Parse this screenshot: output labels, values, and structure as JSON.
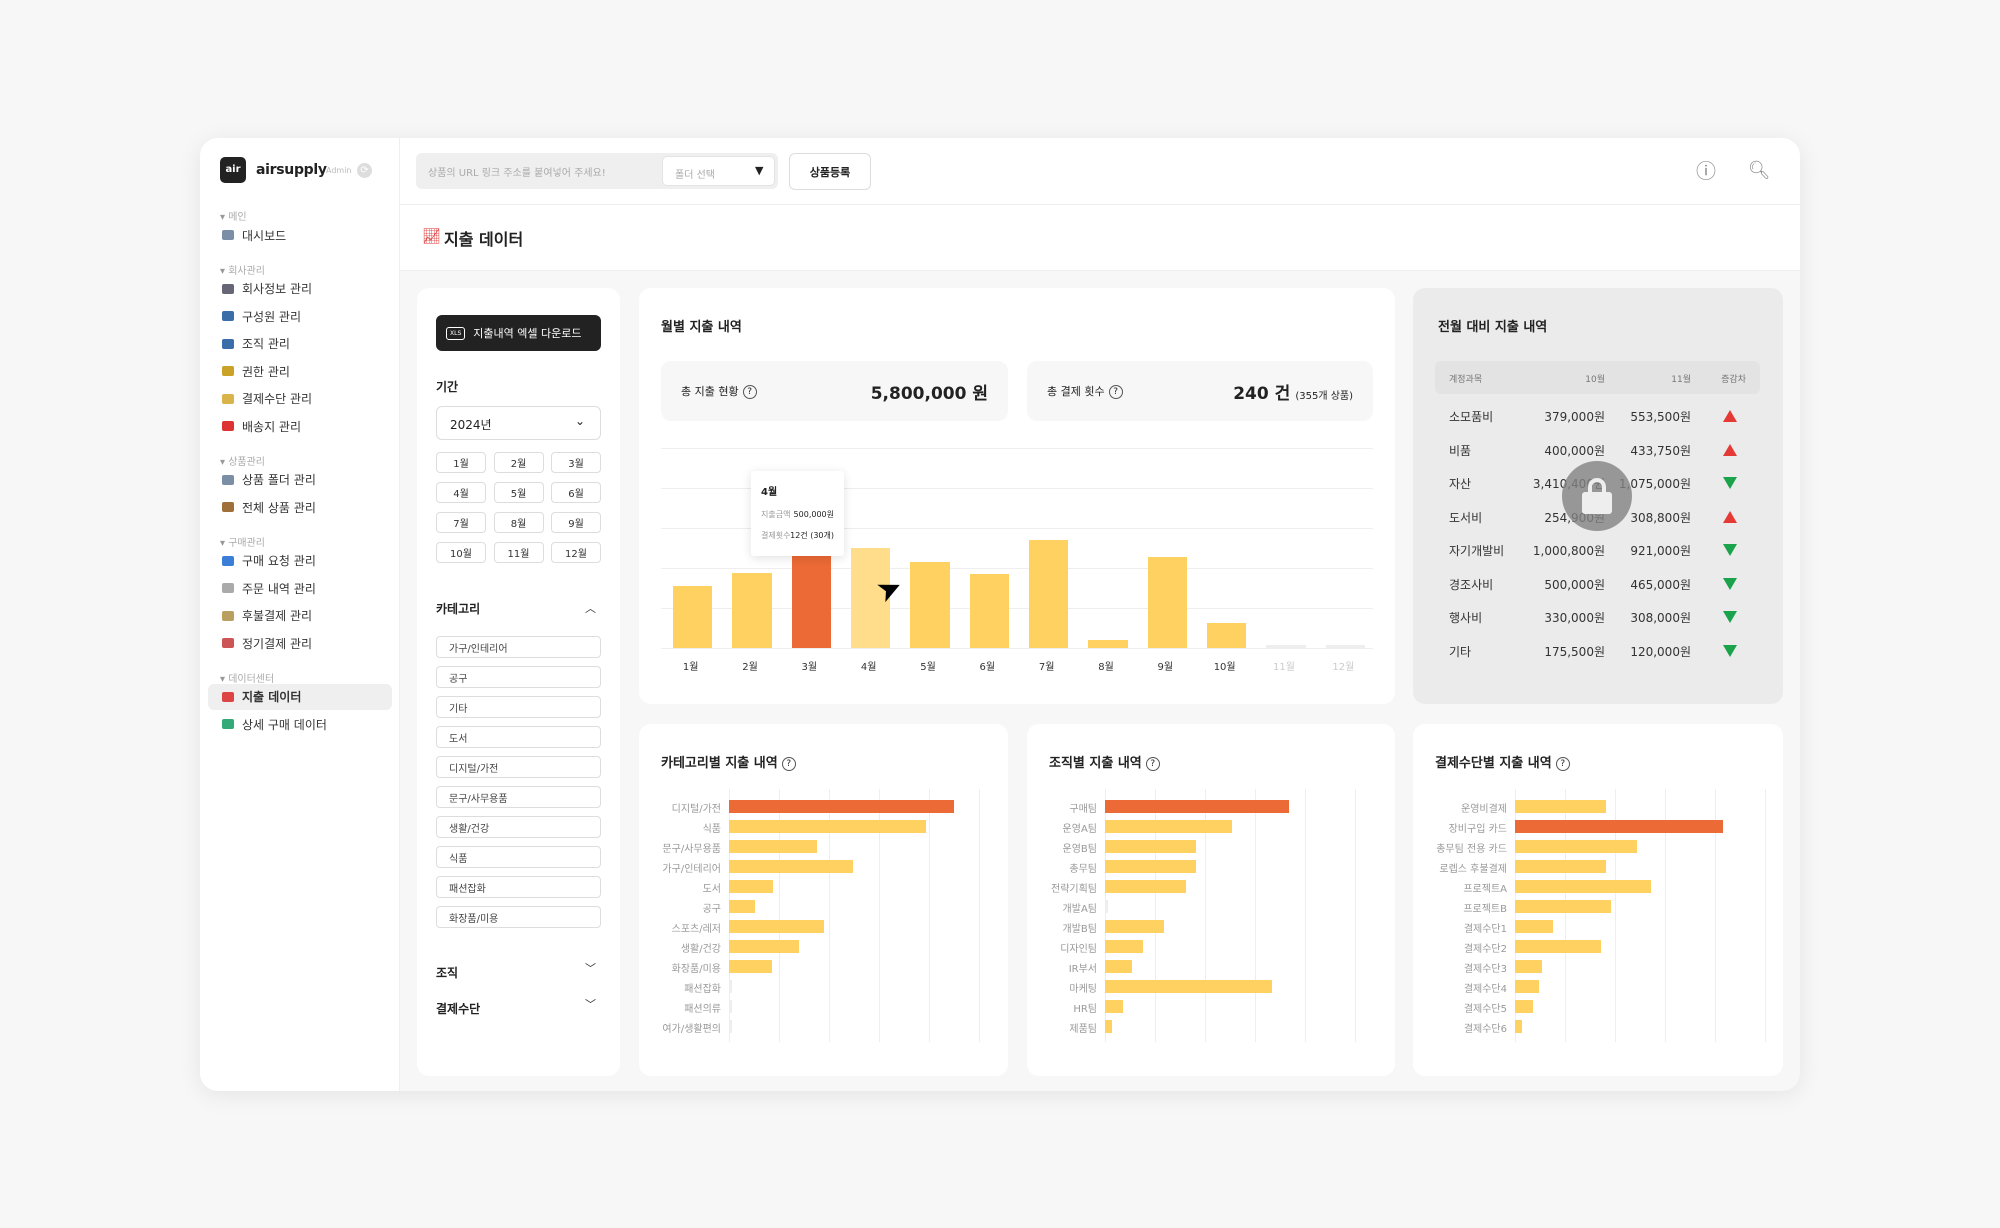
{
  "brand": {
    "logo": "air",
    "name": "airsupply",
    "badge": "Admin"
  },
  "sidebar": [
    {
      "section": "메인",
      "items": [
        {
          "label": "대시보드",
          "icon": "folder-icon",
          "color": "#7a8fa6"
        }
      ]
    },
    {
      "section": "회사관리",
      "items": [
        {
          "label": "회사정보 관리",
          "icon": "building-icon",
          "color": "#667"
        },
        {
          "label": "구성원 관리",
          "icon": "user-icon",
          "color": "#3b6ea8"
        },
        {
          "label": "조직 관리",
          "icon": "users-icon",
          "color": "#3b6ea8"
        },
        {
          "label": "권한 관리",
          "icon": "lock-icon",
          "color": "#c9a227"
        },
        {
          "label": "결제수단 관리",
          "icon": "credit-card-icon",
          "color": "#d8b44a"
        },
        {
          "label": "배송지 관리",
          "icon": "pin-icon",
          "color": "#d33"
        }
      ]
    },
    {
      "section": "상품관리",
      "items": [
        {
          "label": "상품 폴더 관리",
          "icon": "folder-icon",
          "color": "#7a8fa6"
        },
        {
          "label": "전체 상품 관리",
          "icon": "package-icon",
          "color": "#a0703a"
        }
      ]
    },
    {
      "section": "구매관리",
      "items": [
        {
          "label": "구매 요청 관리",
          "icon": "inbox-icon",
          "color": "#3b7ed8"
        },
        {
          "label": "주문 내역 관리",
          "icon": "document-icon",
          "color": "#aaa"
        },
        {
          "label": "후불결제 관리",
          "icon": "money-icon",
          "color": "#b9a060"
        },
        {
          "label": "정기결제 관리",
          "icon": "calendar-icon",
          "color": "#c55"
        }
      ]
    },
    {
      "section": "데이터센터",
      "items": [
        {
          "label": "지출 데이터",
          "icon": "chart-up-icon",
          "color": "#d44",
          "active": true
        },
        {
          "label": "상세 구매 데이터",
          "icon": "bar-chart-icon",
          "color": "#3a7"
        }
      ]
    }
  ],
  "header": {
    "url_placeholder": "상품의 URL 링크 주소를 붙여넣어 주세요!",
    "folder_placeholder": "폴더 선택",
    "register": "상품등록"
  },
  "page": {
    "title": "지출 데이터"
  },
  "filter": {
    "download": "지출내역 엑셀 다운로드",
    "period_label": "기간",
    "year": "2024년",
    "months": [
      "1월",
      "2월",
      "3월",
      "4월",
      "5월",
      "6월",
      "7월",
      "8월",
      "9월",
      "10월",
      "11월",
      "12월"
    ],
    "category_label": "카테고리",
    "categories": [
      "가구/인테리어",
      "공구",
      "기타",
      "도서",
      "디지털/가전",
      "문구/사무용품",
      "생활/건강",
      "식품",
      "패션잡화",
      "화장품/미용"
    ],
    "org_label": "조직",
    "payment_label": "결제수단"
  },
  "monthly": {
    "title": "월별 지출 내역",
    "total_label": "총 지출 현황",
    "total_value": "5,800,000 원",
    "count_label": "총 결제 횟수",
    "count_value": "240 건",
    "count_sub": "(355개 상품)",
    "tooltip": {
      "month": "4월",
      "amount_label": "지출금액",
      "amount": "500,000원",
      "count_label": "결제횟수",
      "count": "12건 (30개)"
    }
  },
  "compare": {
    "title": "전월 대비 지출 내역",
    "headers": [
      "계정과목",
      "10월",
      "11월",
      "증감차"
    ],
    "rows": [
      [
        "소모품비",
        "379,000원",
        "553,500원",
        "up"
      ],
      [
        "비품",
        "400,000원",
        "433,750원",
        "up"
      ],
      [
        "자산",
        "3,410,400원",
        "1,075,000원",
        "down"
      ],
      [
        "도서비",
        "254,900원",
        "308,800원",
        "up"
      ],
      [
        "자기개발비",
        "1,000,800원",
        "921,000원",
        "down"
      ],
      [
        "경조사비",
        "500,000원",
        "465,000원",
        "down"
      ],
      [
        "행사비",
        "330,000원",
        "308,000원",
        "down"
      ],
      [
        "기타",
        "175,500원",
        "120,000원",
        "down"
      ]
    ]
  },
  "colors": {
    "accent": "#ec6a35",
    "bar": "#ffd160",
    "bar_hover": "#ffdd8a",
    "empty": "#eeeeee",
    "up": "#e53935",
    "down": "#1aa34a"
  },
  "chart_data": [
    {
      "type": "bar",
      "title": "월별 지출 내역",
      "categories": [
        "1월",
        "2월",
        "3월",
        "4월",
        "5월",
        "6월",
        "7월",
        "8월",
        "9월",
        "10월",
        "11월",
        "12월"
      ],
      "values": [
        310000,
        375000,
        715000,
        500000,
        430000,
        370000,
        540000,
        40000,
        455000,
        125000,
        0,
        0
      ],
      "ylim": [
        0,
        1000000
      ],
      "highlight": "3월",
      "hover": "4월"
    },
    {
      "type": "bar",
      "orientation": "horizontal",
      "title": "카테고리별 지출 내역",
      "categories": [
        "디지털/가전",
        "식품",
        "문구/사무용품",
        "가구/인테리어",
        "도서",
        "공구",
        "스포츠/레저",
        "생활/건강",
        "화장품/미용",
        "패션잡화",
        "패션의류",
        "여가/생활편의"
      ],
      "values": [
        4.49,
        3.93,
        1.75,
        2.47,
        0.88,
        0.51,
        1.89,
        1.39,
        0.85,
        0,
        0,
        0
      ],
      "xlim": [
        0,
        5
      ]
    },
    {
      "type": "bar",
      "orientation": "horizontal",
      "title": "조직별 지출 내역",
      "categories": [
        "구매팀",
        "운영A팀",
        "운영B팀",
        "총무팀",
        "전략기획팀",
        "개발A팀",
        "개발B팀",
        "디자인팀",
        "IR부서",
        "마케팅",
        "HR팀",
        "제품팀"
      ],
      "values": [
        3.67,
        2.54,
        1.81,
        1.81,
        1.61,
        0,
        1.17,
        0.76,
        0.54,
        3.34,
        0.35,
        0.14
      ],
      "xlim": [
        0,
        5
      ]
    },
    {
      "type": "bar",
      "orientation": "horizontal",
      "title": "결제수단별 지출 내역",
      "categories": [
        "운영비결제",
        "장비구입 카드",
        "총무팀 전용 카드",
        "로렙스 후불결제",
        "프로젝트A",
        "프로젝트B",
        "결제수단1",
        "결제수단2",
        "결제수단3",
        "결제수단4",
        "결제수단5",
        "결제수단6"
      ],
      "values": [
        1.81,
        4.15,
        2.44,
        1.81,
        2.71,
        1.91,
        0.75,
        1.72,
        0.54,
        0.47,
        0.35,
        0.14
      ],
      "xlim": [
        0,
        5
      ]
    }
  ]
}
